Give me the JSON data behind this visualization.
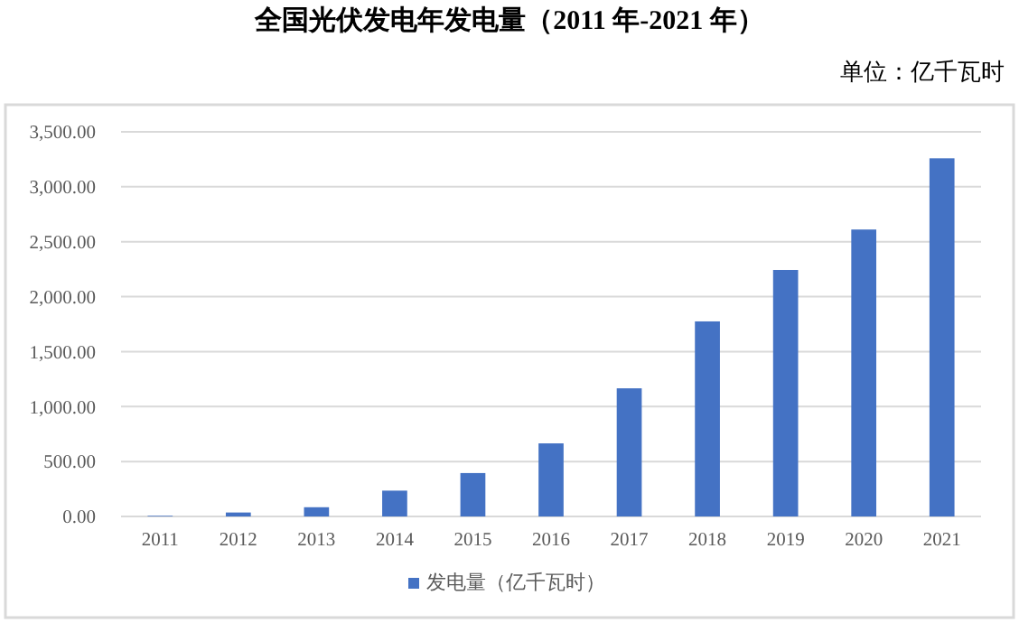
{
  "chart_data": {
    "type": "bar",
    "title": "全国光伏发电年发电量（2011 年-2021 年）",
    "subtitle": "单位：亿千瓦时",
    "categories": [
      "2011",
      "2012",
      "2013",
      "2014",
      "2015",
      "2016",
      "2017",
      "2018",
      "2019",
      "2020",
      "2021"
    ],
    "series": [
      {
        "name": "发电量（亿千瓦时）",
        "color": "#4472c4",
        "values": [
          6,
          36,
          84,
          235,
          395,
          665,
          1166,
          1775,
          2243,
          2611,
          3259
        ]
      }
    ],
    "ylim": [
      0,
      3500
    ],
    "yticks": [
      {
        "value": 0,
        "label": "0.00"
      },
      {
        "value": 500,
        "label": "500.00"
      },
      {
        "value": 1000,
        "label": "1,000.00"
      },
      {
        "value": 1500,
        "label": "1,500.00"
      },
      {
        "value": 2000,
        "label": "2,000.00"
      },
      {
        "value": 2500,
        "label": "2,500.00"
      },
      {
        "value": 3000,
        "label": "3,000.00"
      },
      {
        "value": 3500,
        "label": "3,500.00"
      }
    ],
    "grid": "y",
    "legend": "bottom"
  }
}
